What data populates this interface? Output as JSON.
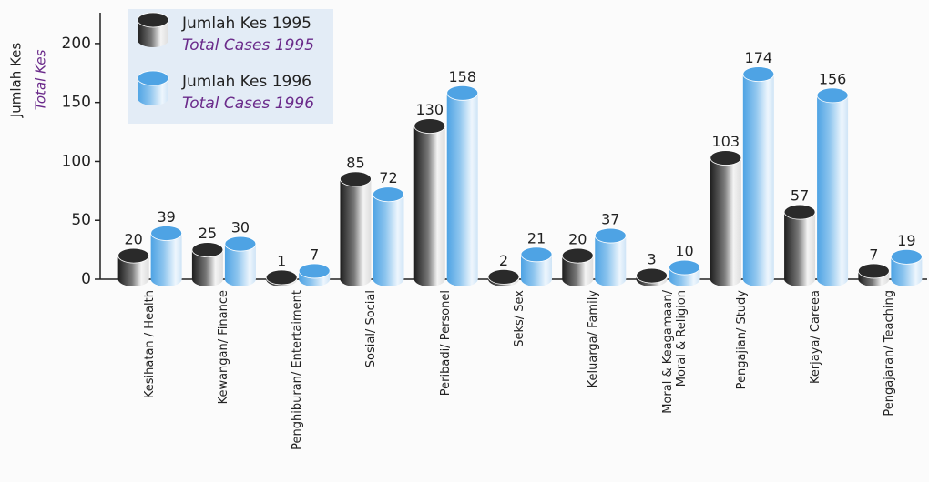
{
  "chart_data": {
    "type": "bar",
    "y_label": "Jumlah Kes",
    "y_label_en": "Total Kes",
    "categories": [
      "Kesihatan / Health",
      "Kewangan/ Finance",
      "Penghiburan/ Entertaiment",
      "Sosial/ Social",
      "Peribadi/ Personel",
      "Seks/ Sex",
      "Keluarga/ Family",
      "Moral & Keagamaan/\nMoral & Religion",
      "Pengajian/ Study",
      "Kerjaya/ Careea",
      "Pengajaran/ Teaching"
    ],
    "series": [
      {
        "name": "Jumlah Kes 1995",
        "name_en": "Total Cases 1995",
        "color": "#2a2a2a",
        "values": [
          20,
          25,
          1,
          85,
          130,
          2,
          20,
          3,
          103,
          57,
          7
        ]
      },
      {
        "name": "Jumlah Kes 1996",
        "name_en": "Total Cases 1996",
        "color": "#4ea3e4",
        "values": [
          39,
          30,
          7,
          72,
          158,
          21,
          37,
          10,
          174,
          156,
          19
        ]
      }
    ],
    "ylim": [
      0,
      220
    ],
    "yticks": [
      0,
      50,
      100,
      150,
      200
    ],
    "legend": "top-left"
  }
}
